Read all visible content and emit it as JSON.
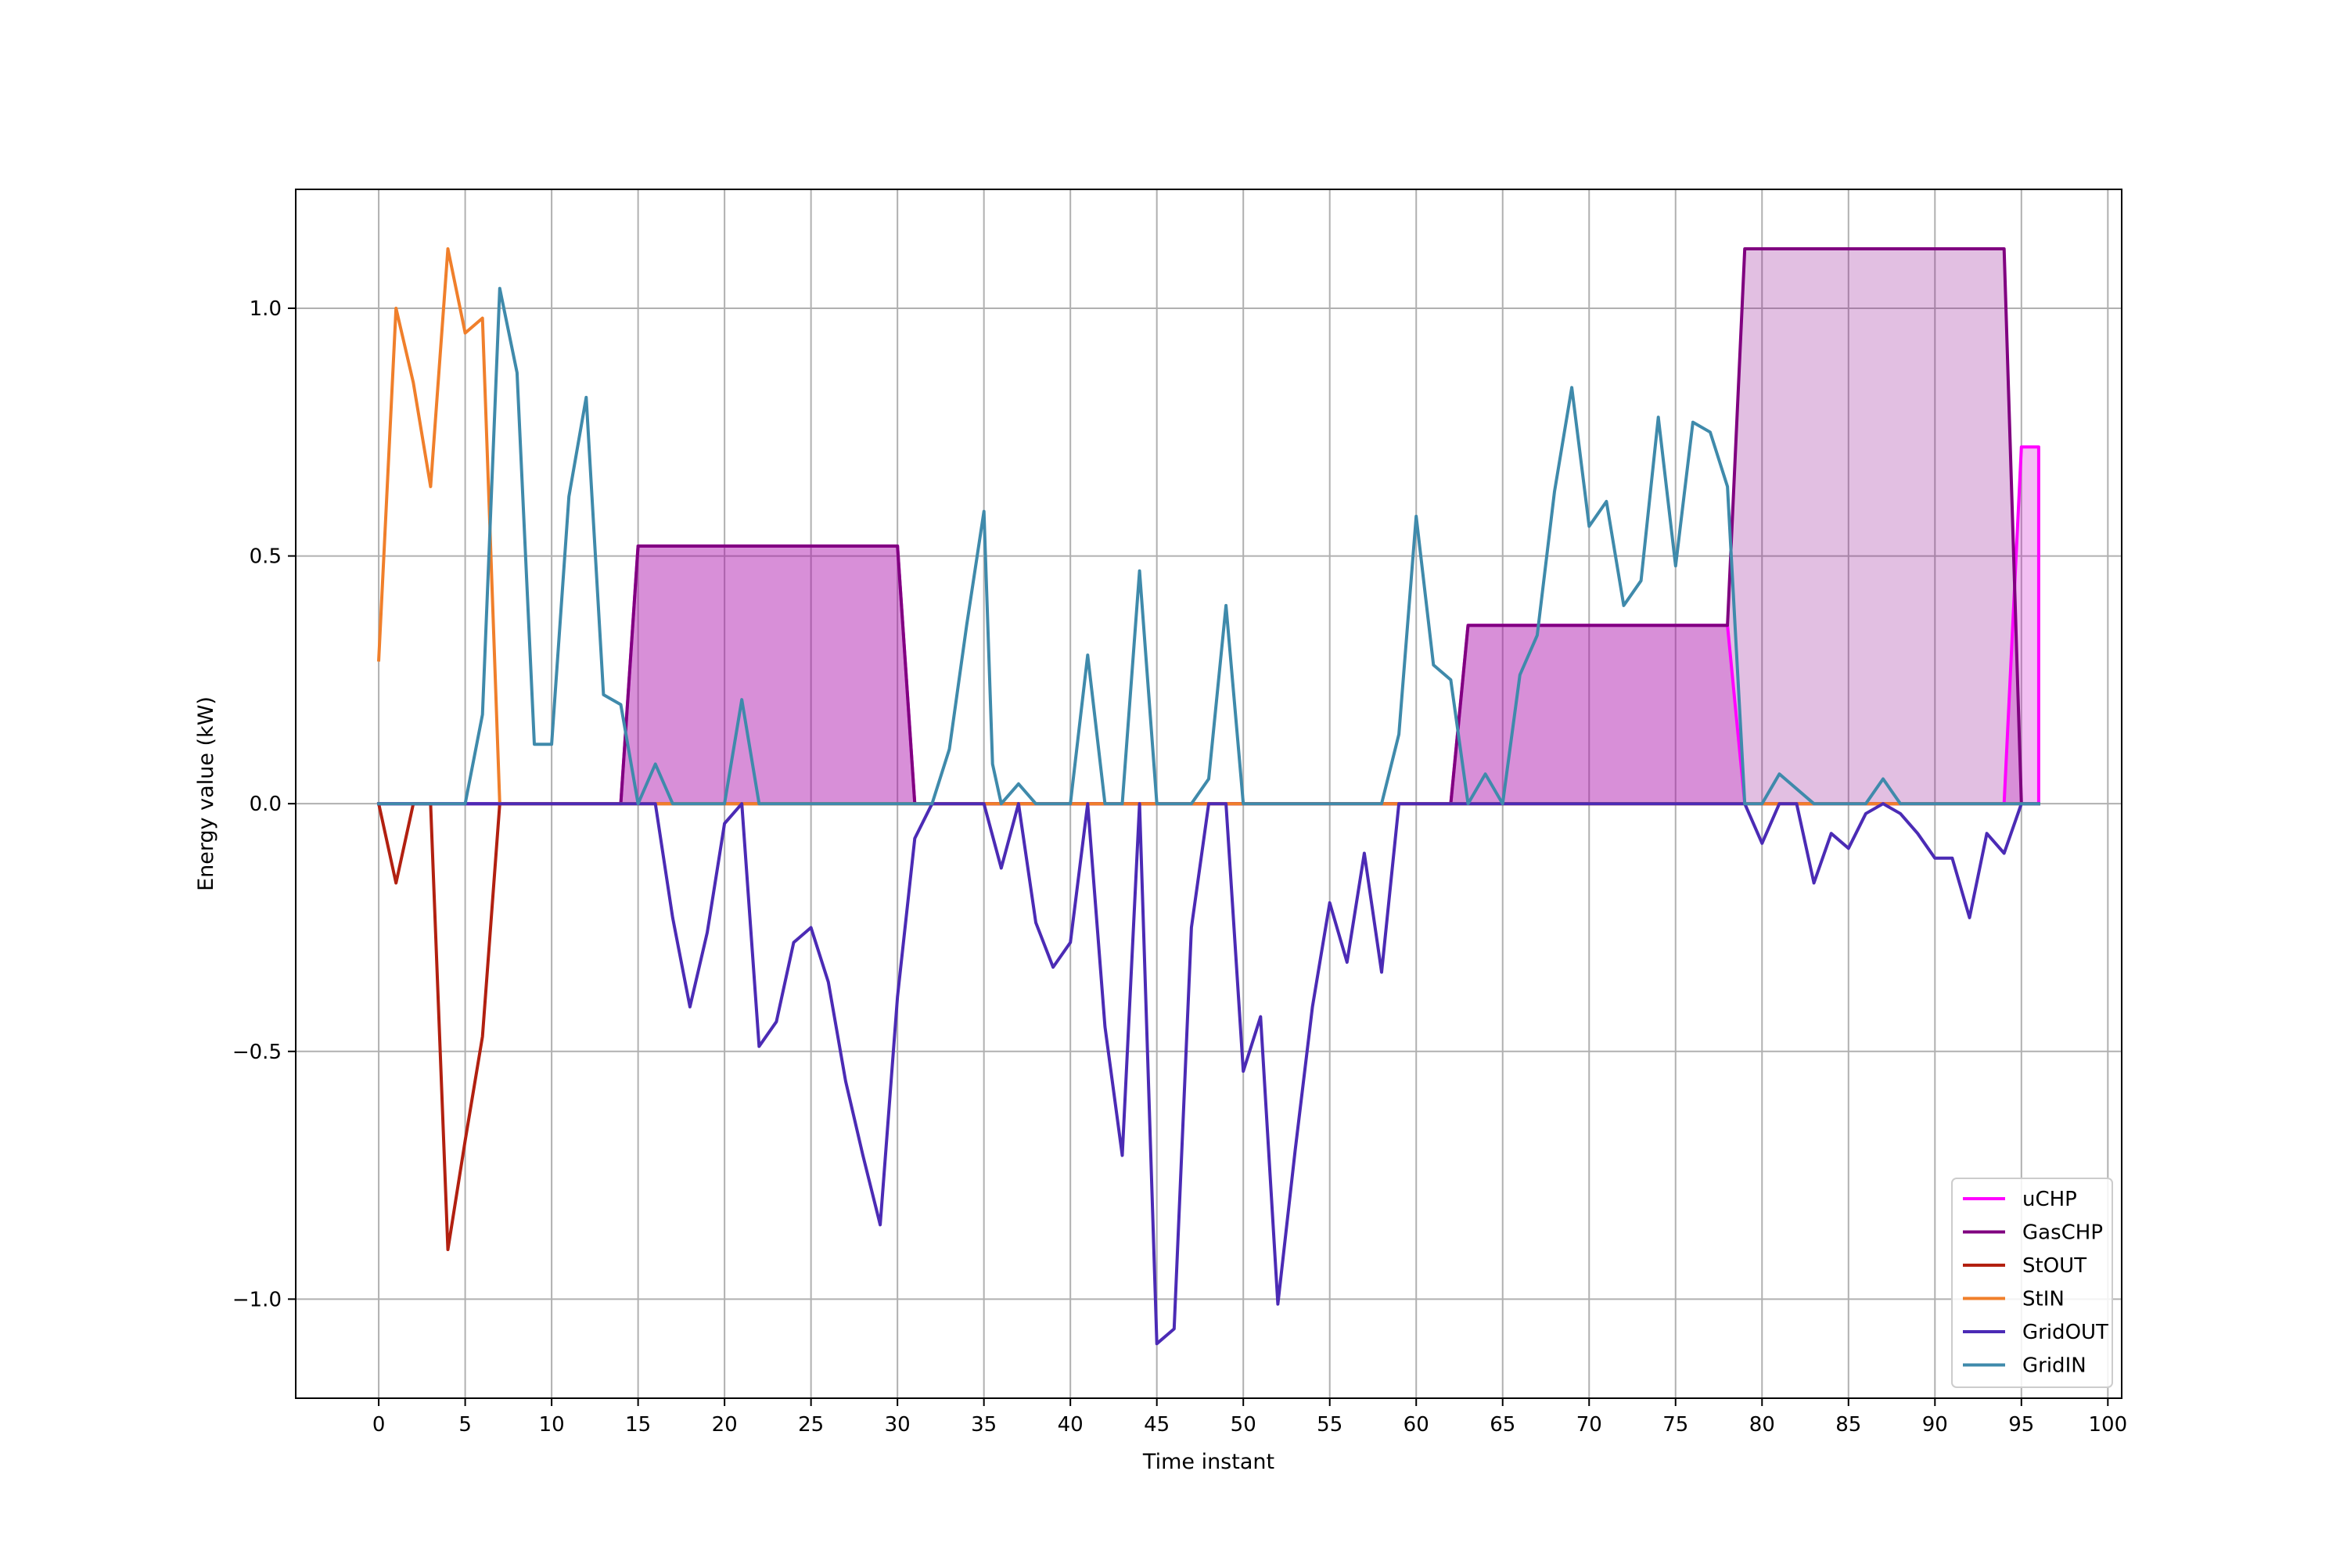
{
  "chart_data": {
    "type": "line",
    "title": "",
    "xlabel": "Time instant",
    "ylabel": "Energy value (kW)",
    "xlim": [
      -4.8,
      100.8
    ],
    "ylim": [
      -1.2,
      1.24
    ],
    "grid": true,
    "legend_position": "lower-right",
    "xticks": [
      0,
      5,
      10,
      15,
      20,
      25,
      30,
      35,
      40,
      45,
      50,
      55,
      60,
      65,
      70,
      75,
      80,
      85,
      90,
      95,
      100
    ],
    "yticks": [
      -1.0,
      -0.5,
      0.0,
      0.5,
      1.0
    ],
    "ytick_labels": [
      "−1.0",
      "−0.5",
      "0.0",
      "0.5",
      "1.0"
    ],
    "series": [
      {
        "name": "uCHP",
        "color": "#ff00ff",
        "fill": "#cc00cc",
        "fill_opacity": 0.25,
        "points": [
          [
            0,
            0
          ],
          [
            14,
            0
          ],
          [
            15,
            0.52
          ],
          [
            30,
            0.52
          ],
          [
            31,
            0
          ],
          [
            62,
            0
          ],
          [
            63,
            0.36
          ],
          [
            78,
            0.36
          ],
          [
            79,
            0
          ],
          [
            94,
            0
          ],
          [
            95,
            0.72
          ],
          [
            96,
            0.72
          ],
          [
            96,
            0
          ]
        ]
      },
      {
        "name": "GasCHP",
        "color": "#800080",
        "fill": "#8b008b",
        "fill_opacity": 0.25,
        "points": [
          [
            0,
            0
          ],
          [
            14,
            0
          ],
          [
            15,
            0.52
          ],
          [
            30,
            0.52
          ],
          [
            31,
            0
          ],
          [
            62,
            0
          ],
          [
            63,
            0.36
          ],
          [
            78,
            0.36
          ],
          [
            79,
            1.12
          ],
          [
            94,
            1.12
          ],
          [
            95,
            0
          ],
          [
            96,
            0
          ]
        ]
      },
      {
        "name": "StOUT",
        "color": "#b22010",
        "points": [
          [
            0,
            0
          ],
          [
            1,
            -0.16
          ],
          [
            2,
            0
          ],
          [
            3,
            0
          ],
          [
            4,
            -0.9
          ],
          [
            5,
            -0.68
          ],
          [
            6,
            -0.47
          ],
          [
            7,
            0
          ],
          [
            96,
            0
          ]
        ]
      },
      {
        "name": "StIN",
        "color": "#f07f2b",
        "points": [
          [
            0,
            0.29
          ],
          [
            1,
            1.0
          ],
          [
            2,
            0.85
          ],
          [
            3,
            0.64
          ],
          [
            4,
            1.12
          ],
          [
            5,
            0.95
          ],
          [
            6,
            0.98
          ],
          [
            7,
            0
          ],
          [
            96,
            0
          ]
        ]
      },
      {
        "name": "GridOUT",
        "color": "#4b2bb5",
        "points": [
          [
            0,
            0
          ],
          [
            15,
            0
          ],
          [
            16,
            0
          ],
          [
            17,
            -0.23
          ],
          [
            18,
            -0.41
          ],
          [
            19,
            -0.26
          ],
          [
            20,
            -0.04
          ],
          [
            21,
            0
          ],
          [
            22,
            -0.49
          ],
          [
            23,
            -0.44
          ],
          [
            24,
            -0.28
          ],
          [
            25,
            -0.25
          ],
          [
            26,
            -0.36
          ],
          [
            27,
            -0.56
          ],
          [
            28,
            -0.71
          ],
          [
            29,
            -0.85
          ],
          [
            30,
            -0.39
          ],
          [
            31,
            -0.07
          ],
          [
            32,
            0
          ],
          [
            35,
            0
          ],
          [
            36,
            -0.13
          ],
          [
            37,
            0
          ],
          [
            38,
            -0.24
          ],
          [
            39,
            -0.33
          ],
          [
            40,
            -0.28
          ],
          [
            41,
            0
          ],
          [
            42,
            -0.45
          ],
          [
            43,
            -0.71
          ],
          [
            44,
            0
          ],
          [
            45,
            -1.09
          ],
          [
            46,
            -1.06
          ],
          [
            47,
            -0.25
          ],
          [
            48,
            0
          ],
          [
            49,
            0
          ],
          [
            50,
            -0.54
          ],
          [
            51,
            -0.43
          ],
          [
            52,
            -1.01
          ],
          [
            53,
            -0.7
          ],
          [
            54,
            -0.41
          ],
          [
            55,
            -0.2
          ],
          [
            56,
            -0.32
          ],
          [
            57,
            -0.1
          ],
          [
            58,
            -0.34
          ],
          [
            59,
            0
          ],
          [
            79,
            0
          ],
          [
            80,
            -0.08
          ],
          [
            81,
            0
          ],
          [
            82,
            0
          ],
          [
            83,
            -0.16
          ],
          [
            84,
            -0.06
          ],
          [
            85,
            -0.09
          ],
          [
            86,
            -0.02
          ],
          [
            87,
            0
          ],
          [
            88,
            -0.02
          ],
          [
            89,
            -0.06
          ],
          [
            90,
            -0.11
          ],
          [
            91,
            -0.11
          ],
          [
            92,
            -0.23
          ],
          [
            93,
            -0.06
          ],
          [
            94,
            -0.1
          ],
          [
            95,
            0
          ],
          [
            96,
            0
          ]
        ]
      },
      {
        "name": "GridIN",
        "color": "#3f8aab",
        "points": [
          [
            0,
            0
          ],
          [
            5,
            0
          ],
          [
            6,
            0.18
          ],
          [
            7,
            1.04
          ],
          [
            8,
            0.87
          ],
          [
            9,
            0.12
          ],
          [
            10,
            0.12
          ],
          [
            11,
            0.62
          ],
          [
            12,
            0.82
          ],
          [
            13,
            0.22
          ],
          [
            14,
            0.2
          ],
          [
            15,
            0
          ],
          [
            16,
            0.08
          ],
          [
            17,
            0
          ],
          [
            20,
            0
          ],
          [
            21,
            0.21
          ],
          [
            22,
            0
          ],
          [
            32,
            0
          ],
          [
            33,
            0.11
          ],
          [
            34,
            0.36
          ],
          [
            35,
            0.59
          ],
          [
            35.5,
            0.08
          ],
          [
            36,
            0
          ],
          [
            37,
            0.04
          ],
          [
            38,
            0
          ],
          [
            40,
            0
          ],
          [
            41,
            0.3
          ],
          [
            42,
            0
          ],
          [
            43,
            0
          ],
          [
            44,
            0.47
          ],
          [
            45,
            0
          ],
          [
            47,
            0
          ],
          [
            48,
            0.05
          ],
          [
            49,
            0.4
          ],
          [
            50,
            0
          ],
          [
            58,
            0
          ],
          [
            59,
            0.14
          ],
          [
            60,
            0.58
          ],
          [
            61,
            0.28
          ],
          [
            62,
            0.25
          ],
          [
            63,
            0
          ],
          [
            64,
            0.06
          ],
          [
            65,
            0
          ],
          [
            66,
            0.26
          ],
          [
            67,
            0.34
          ],
          [
            68,
            0.63
          ],
          [
            69,
            0.84
          ],
          [
            70,
            0.56
          ],
          [
            71,
            0.61
          ],
          [
            72,
            0.4
          ],
          [
            73,
            0.45
          ],
          [
            74,
            0.78
          ],
          [
            75,
            0.48
          ],
          [
            76,
            0.77
          ],
          [
            77,
            0.75
          ],
          [
            78,
            0.64
          ],
          [
            79,
            0
          ],
          [
            80,
            0
          ],
          [
            81,
            0.06
          ],
          [
            82,
            0.03
          ],
          [
            83,
            0
          ],
          [
            86,
            0
          ],
          [
            87,
            0.05
          ],
          [
            88,
            0
          ],
          [
            96,
            0
          ]
        ]
      }
    ]
  }
}
